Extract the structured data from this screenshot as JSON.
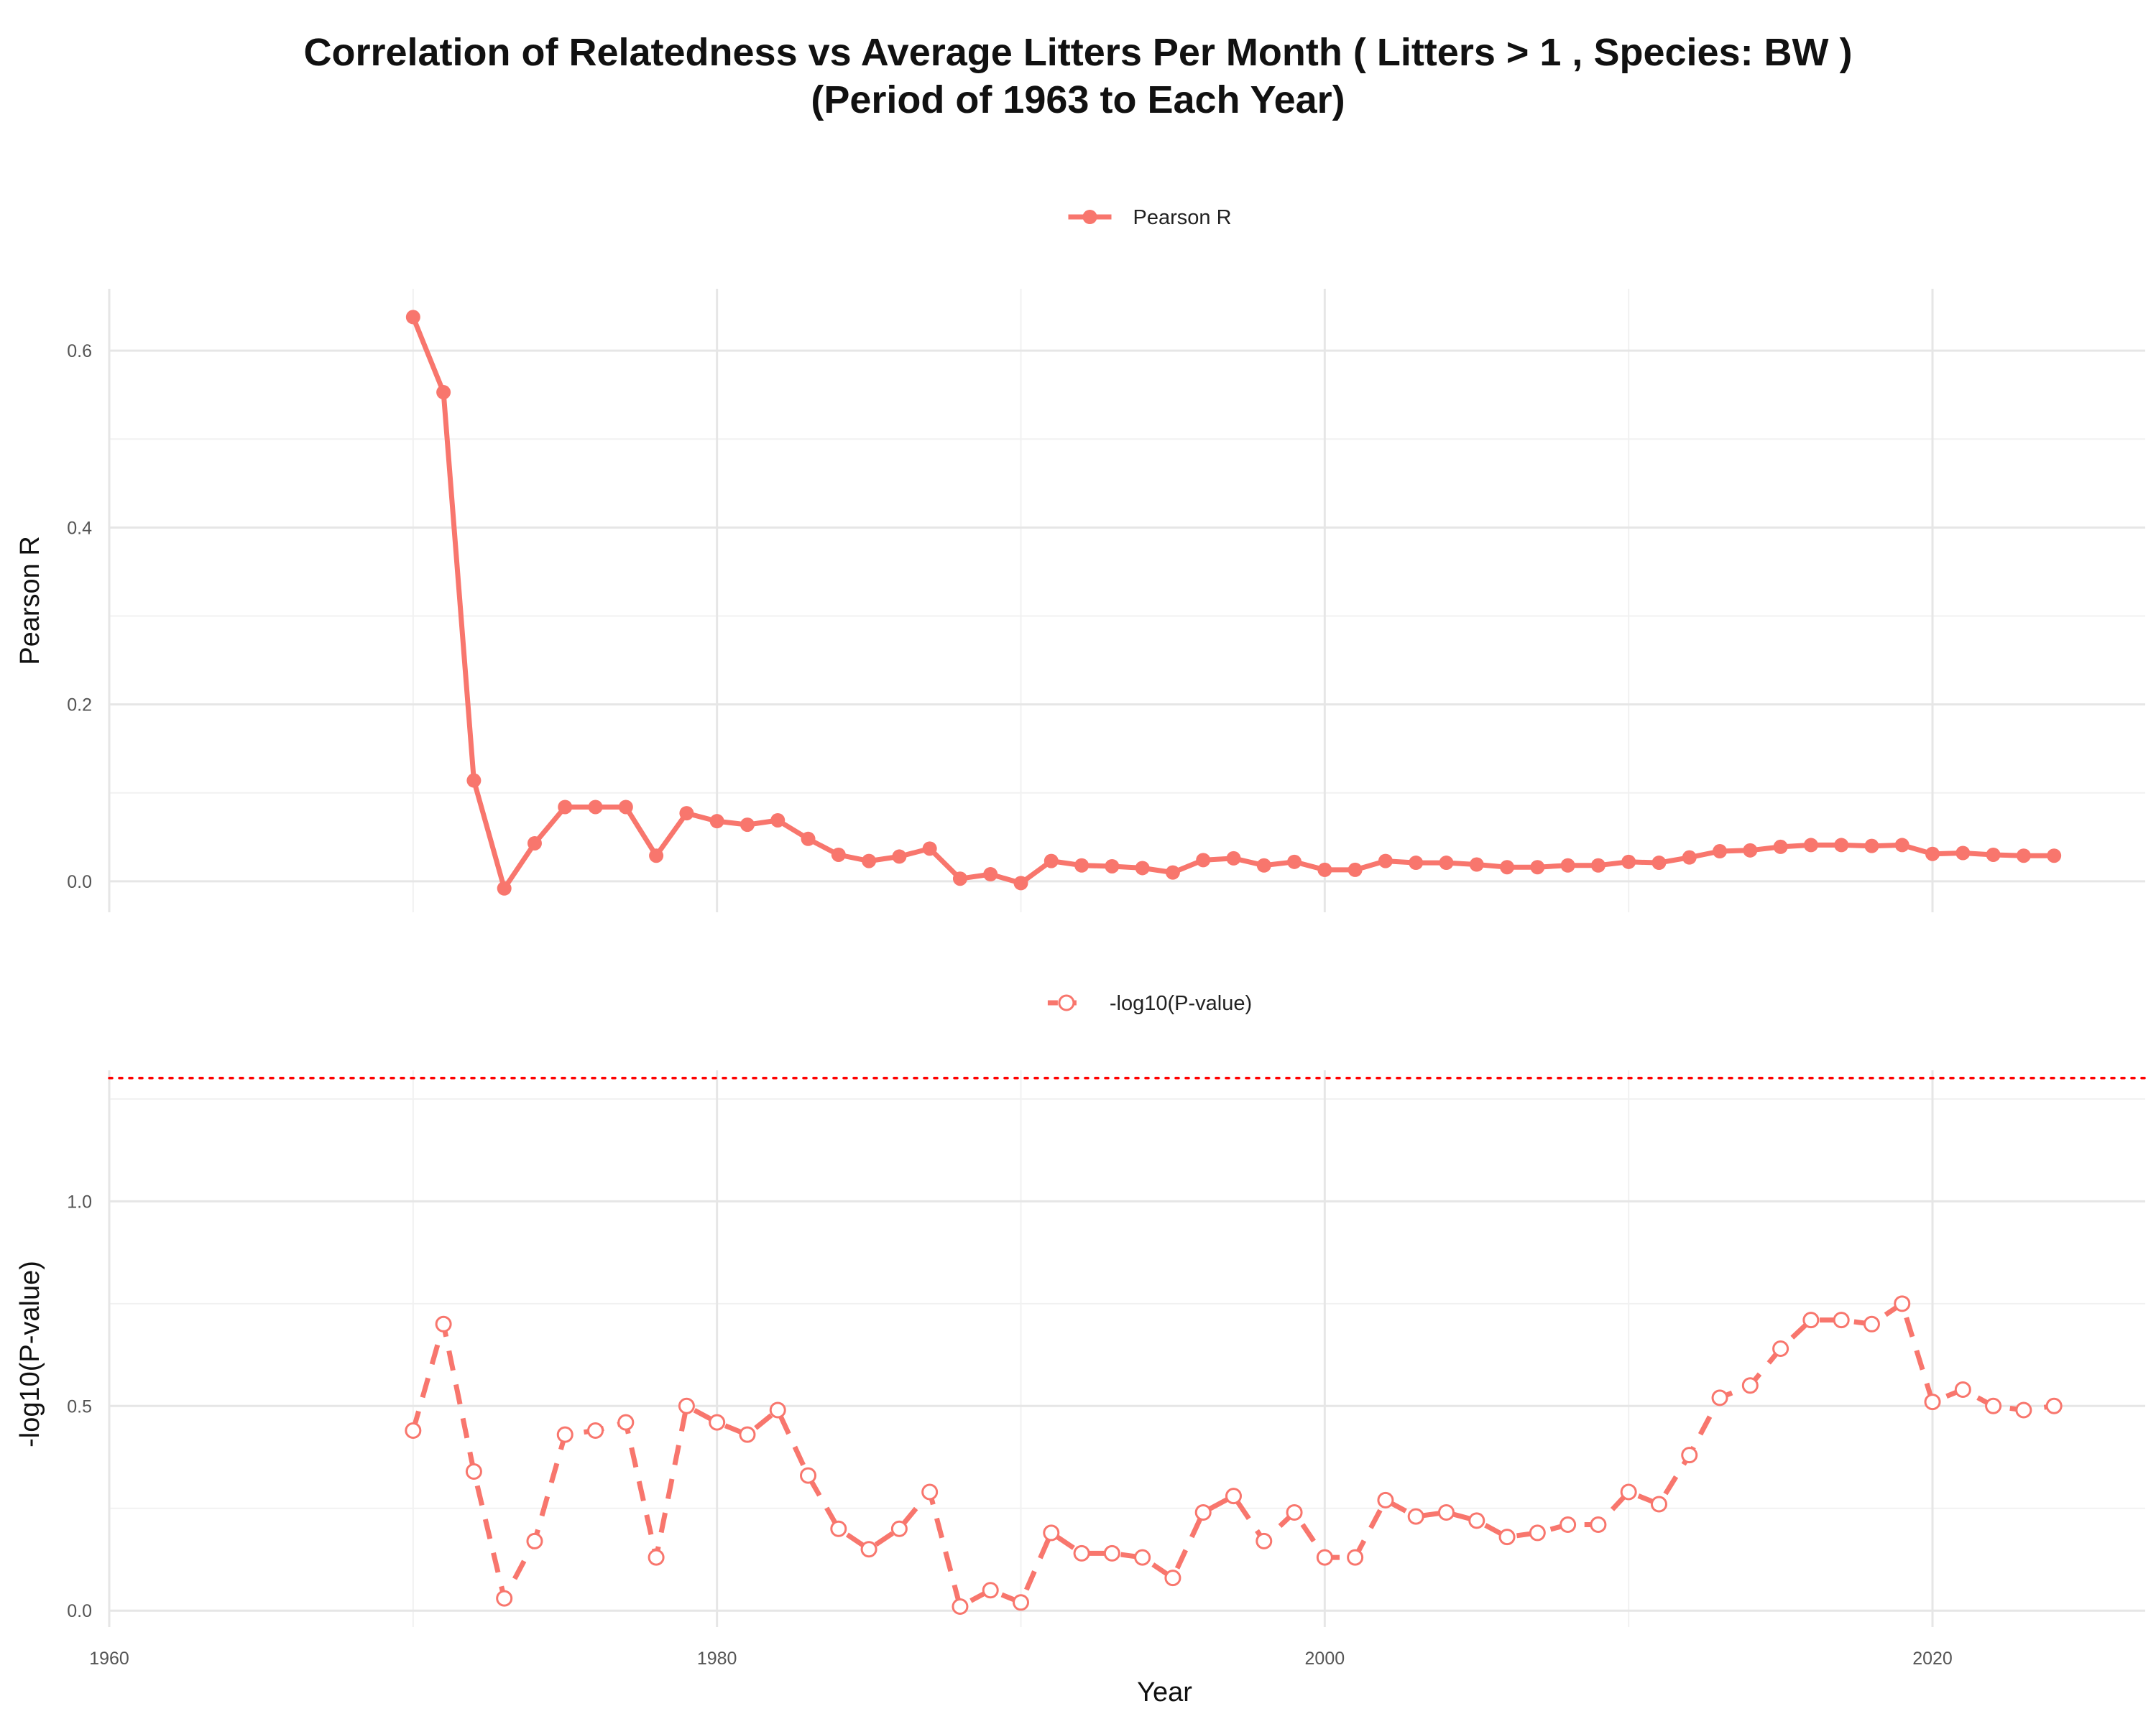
{
  "chart_data": [
    {
      "type": "line",
      "title": "Correlation of Relatedness vs Average Litters Per Month ( Litters > 1 , Species: BW )",
      "subtitle": "(Period of 1963 to Each Year)",
      "ylabel": "Pearson R",
      "xlabel": "",
      "xlim": [
        1960,
        2027
      ],
      "ylim": [
        -0.035,
        0.67
      ],
      "x_ticks": [
        "1960",
        "1980",
        "2000",
        "2020"
      ],
      "y_ticks": [
        "0.0",
        "0.2",
        "0.4",
        "0.6"
      ],
      "grid": true,
      "legend_position": "top",
      "color": "#F8766D",
      "series": [
        {
          "name": "Pearson R",
          "x": [
            1970,
            1971,
            1972,
            1973,
            1974,
            1975,
            1976,
            1977,
            1978,
            1979,
            1980,
            1981,
            1982,
            1983,
            1984,
            1985,
            1986,
            1987,
            1988,
            1989,
            1990,
            1991,
            1992,
            1993,
            1994,
            1995,
            1996,
            1997,
            1998,
            1999,
            2000,
            2001,
            2002,
            2003,
            2004,
            2005,
            2006,
            2007,
            2008,
            2009,
            2010,
            2011,
            2012,
            2013,
            2014,
            2015,
            2016,
            2017,
            2018,
            2019,
            2020,
            2021,
            2022,
            2023,
            2024
          ],
          "y": [
            0.638,
            0.553,
            0.114,
            -0.008,
            0.043,
            0.084,
            0.084,
            0.084,
            0.029,
            0.077,
            0.068,
            0.064,
            0.069,
            0.048,
            0.03,
            0.023,
            0.028,
            0.037,
            0.003,
            0.008,
            -0.002,
            0.023,
            0.018,
            0.017,
            0.015,
            0.01,
            0.024,
            0.026,
            0.018,
            0.022,
            0.013,
            0.013,
            0.023,
            0.021,
            0.021,
            0.019,
            0.016,
            0.016,
            0.018,
            0.018,
            0.022,
            0.021,
            0.027,
            0.034,
            0.035,
            0.039,
            0.041,
            0.041,
            0.04,
            0.041,
            0.031,
            0.032,
            0.03,
            0.029,
            0.029
          ]
        }
      ]
    },
    {
      "type": "line",
      "xlabel": "Year",
      "ylabel": "-log10(P-value)",
      "xlim": [
        1960,
        2027
      ],
      "ylim": [
        -0.04,
        1.32
      ],
      "x_ticks": [
        "1960",
        "1980",
        "2000",
        "2020"
      ],
      "y_ticks": [
        "0.0",
        "0.5",
        "1.0"
      ],
      "grid": true,
      "legend_position": "top",
      "color": "#F8766D",
      "threshold": 1.30103,
      "threshold_color": "#FF0000",
      "series": [
        {
          "name": "-log10(P-value)",
          "x": [
            1970,
            1971,
            1972,
            1973,
            1974,
            1975,
            1976,
            1977,
            1978,
            1979,
            1980,
            1981,
            1982,
            1983,
            1984,
            1985,
            1986,
            1987,
            1988,
            1989,
            1990,
            1991,
            1992,
            1993,
            1994,
            1995,
            1996,
            1997,
            1998,
            1999,
            2000,
            2001,
            2002,
            2003,
            2004,
            2005,
            2006,
            2007,
            2008,
            2009,
            2010,
            2011,
            2012,
            2013,
            2014,
            2015,
            2016,
            2017,
            2018,
            2019,
            2020,
            2021,
            2022,
            2023,
            2024
          ],
          "y": [
            0.44,
            0.7,
            0.34,
            0.03,
            0.17,
            0.43,
            0.44,
            0.46,
            0.13,
            0.5,
            0.46,
            0.43,
            0.49,
            0.33,
            0.2,
            0.15,
            0.2,
            0.29,
            0.01,
            0.05,
            0.02,
            0.19,
            0.14,
            0.14,
            0.13,
            0.08,
            0.24,
            0.28,
            0.17,
            0.24,
            0.13,
            0.13,
            0.27,
            0.23,
            0.24,
            0.22,
            0.18,
            0.19,
            0.21,
            0.21,
            0.29,
            0.26,
            0.38,
            0.52,
            0.55,
            0.64,
            0.71,
            0.71,
            0.7,
            0.75,
            0.51,
            0.54,
            0.5,
            0.49,
            0.5
          ]
        }
      ]
    }
  ]
}
